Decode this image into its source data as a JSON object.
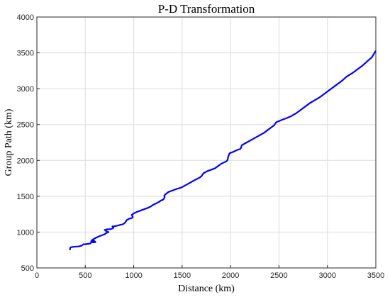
{
  "chart_data": {
    "type": "line",
    "title": "P-D Transformation",
    "xlabel": "Distance (km)",
    "ylabel": "Group Path (km)",
    "xlim": [
      0,
      3500
    ],
    "ylim": [
      500,
      4000
    ],
    "xticks": [
      0,
      500,
      1000,
      1500,
      2000,
      2500,
      3000,
      3500
    ],
    "yticks": [
      500,
      1000,
      1500,
      2000,
      2500,
      3000,
      3500,
      4000
    ],
    "grid": true,
    "series": [
      {
        "color": "#0000ff",
        "x": [
          340,
          345,
          350,
          360,
          380,
          430,
          460,
          480,
          500,
          520,
          550,
          565,
          590,
          605,
          580,
          560,
          575,
          610,
          640,
          680,
          700,
          720,
          740,
          720,
          700,
          730,
          760,
          780,
          790,
          780,
          800,
          830,
          860,
          890,
          910,
          920,
          930,
          960,
          980,
          990,
          980,
          1000,
          1030,
          1070,
          1110,
          1150,
          1180,
          1200,
          1230,
          1260,
          1280,
          1300,
          1310,
          1320,
          1315,
          1330,
          1360,
          1400,
          1440,
          1490,
          1530,
          1570,
          1610,
          1650,
          1680,
          1700,
          1720,
          1760,
          1800,
          1840,
          1870,
          1900,
          1930,
          1960,
          1970,
          1975,
          1990,
          2030,
          2060,
          2100,
          2110,
          2115,
          2140,
          2180,
          2220,
          2260,
          2300,
          2340,
          2380,
          2420,
          2450,
          2470,
          2520,
          2580,
          2630,
          2680,
          2720,
          2770,
          2820,
          2870,
          2920,
          2960,
          3000,
          3050,
          3100,
          3150,
          3200,
          3260,
          3310,
          3360,
          3410,
          3460,
          3500
        ],
        "y": [
          750,
          780,
          790,
          790,
          795,
          800,
          810,
          830,
          830,
          835,
          840,
          860,
          880,
          860,
          855,
          870,
          895,
          920,
          940,
          960,
          970,
          990,
          1000,
          1010,
          1030,
          1040,
          1040,
          1050,
          1060,
          1080,
          1080,
          1090,
          1100,
          1110,
          1130,
          1150,
          1170,
          1190,
          1195,
          1210,
          1240,
          1260,
          1280,
          1300,
          1320,
          1340,
          1360,
          1380,
          1400,
          1420,
          1440,
          1450,
          1460,
          1490,
          1510,
          1530,
          1560,
          1580,
          1600,
          1620,
          1650,
          1680,
          1710,
          1740,
          1760,
          1780,
          1820,
          1850,
          1870,
          1890,
          1920,
          1950,
          1970,
          1990,
          2010,
          2050,
          2100,
          2120,
          2140,
          2160,
          2180,
          2210,
          2230,
          2260,
          2290,
          2320,
          2350,
          2380,
          2420,
          2460,
          2490,
          2530,
          2560,
          2590,
          2620,
          2660,
          2700,
          2750,
          2800,
          2840,
          2880,
          2920,
          2960,
          3010,
          3060,
          3110,
          3170,
          3220,
          3270,
          3320,
          3380,
          3440,
          3530
        ]
      }
    ]
  }
}
